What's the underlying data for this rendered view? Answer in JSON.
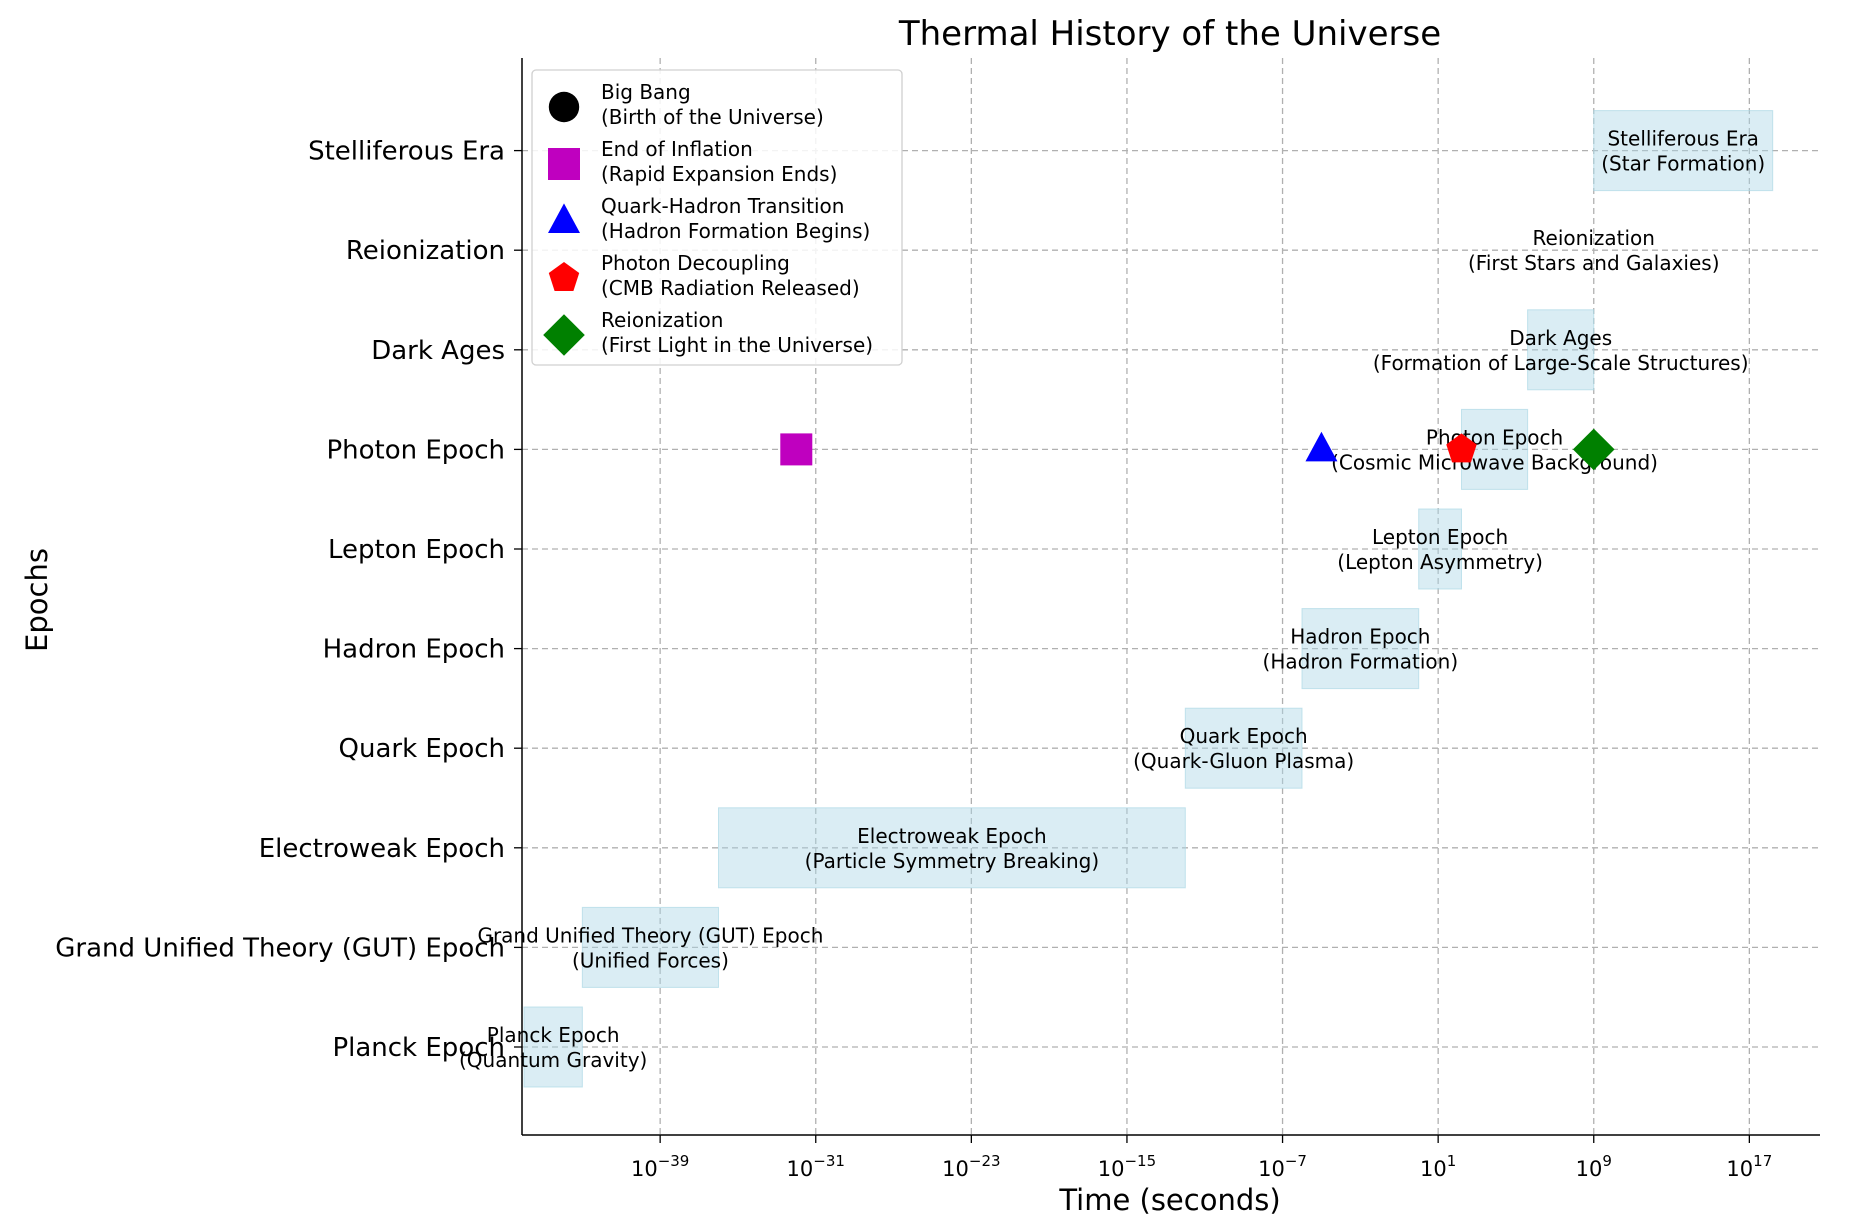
{
  "chart_data": {
    "type": "timeline",
    "title": "Thermal History of the Universe",
    "xlabel": "Time (seconds)",
    "ylabel": "Epochs",
    "x_scale": "log",
    "xlim_exp": [
      -46,
      21
    ],
    "x_ticks": [
      {
        "exp": -39,
        "label": "10",
        "sup": "−39"
      },
      {
        "exp": -31,
        "label": "10",
        "sup": "−31"
      },
      {
        "exp": -23,
        "label": "10",
        "sup": "−23"
      },
      {
        "exp": -15,
        "label": "10",
        "sup": "−15"
      },
      {
        "exp": -7,
        "label": "10",
        "sup": "−7"
      },
      {
        "exp": 1,
        "label": "10",
        "sup": "1"
      },
      {
        "exp": 9,
        "label": "10",
        "sup": "9"
      },
      {
        "exp": 17,
        "label": "10",
        "sup": "17"
      }
    ],
    "grid": true,
    "legend_position": "top-left",
    "epochs": [
      {
        "name": "Planck Epoch",
        "start_exp": -46,
        "end_exp": -43,
        "line1": "Planck Epoch",
        "line2": "(Quantum Gravity)"
      },
      {
        "name": "Grand Unified Theory (GUT) Epoch",
        "start_exp": -43,
        "end_exp": -36,
        "line1": "Grand Unified Theory (GUT) Epoch",
        "line2": "(Unified Forces)"
      },
      {
        "name": "Electroweak Epoch",
        "start_exp": -36,
        "end_exp": -12,
        "line1": "Electroweak Epoch",
        "line2": "(Particle Symmetry Breaking)"
      },
      {
        "name": "Quark Epoch",
        "start_exp": -12,
        "end_exp": -6,
        "line1": "Quark Epoch",
        "line2": "(Quark-Gluon Plasma)"
      },
      {
        "name": "Hadron Epoch",
        "start_exp": -6,
        "end_exp": 0,
        "line1": "Hadron Epoch",
        "line2": "(Hadron Formation)"
      },
      {
        "name": "Lepton Epoch",
        "start_exp": 0,
        "end_exp": 2.2,
        "line1": "Lepton Epoch",
        "line2": "(Lepton Asymmetry)"
      },
      {
        "name": "Photon Epoch",
        "start_exp": 2.2,
        "end_exp": 5.6,
        "line1": "Photon Epoch",
        "line2": "(Cosmic Microwave Background)"
      },
      {
        "name": "Dark Ages",
        "start_exp": 5.6,
        "end_exp": 9,
        "line1": "Dark Ages",
        "line2": "(Formation of Large-Scale Structures)"
      },
      {
        "name": "Reionization",
        "start_exp": 9,
        "end_exp": 9,
        "line1": "Reionization",
        "line2": "(First Stars and Galaxies)"
      },
      {
        "name": "Stelliferous Era",
        "start_exp": 9,
        "end_exp": 18.2,
        "line1": "Stelliferous Era",
        "line2": "(Star Formation)"
      }
    ],
    "events": [
      {
        "name": "Big Bang",
        "desc": "(Birth of the Universe)",
        "marker": "circle",
        "color": "#000000",
        "x_exp": null
      },
      {
        "name": "End of Inflation",
        "desc": "(Rapid Expansion Ends)",
        "marker": "square",
        "color": "#bf00bf",
        "x_exp": -32
      },
      {
        "name": "Quark-Hadron Transition",
        "desc": "(Hadron Formation Begins)",
        "marker": "triangle",
        "color": "#0000ff",
        "x_exp": -5
      },
      {
        "name": "Photon Decoupling",
        "desc": "(CMB Radiation Released)",
        "marker": "pentagon",
        "color": "#ff0000",
        "x_exp": 2.2
      },
      {
        "name": "Reionization",
        "desc": "(First Light in the Universe)",
        "marker": "diamond",
        "color": "#008000",
        "x_exp": 9
      }
    ],
    "colors": {
      "bar_fill": "#add8e6",
      "bar_opacity": 0.45,
      "grid": "#b0b0b0"
    }
  }
}
